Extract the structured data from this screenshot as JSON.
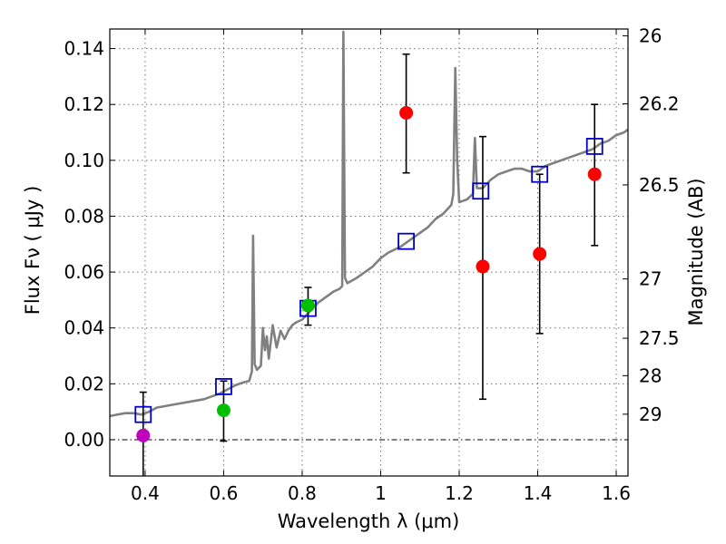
{
  "chart_data": {
    "type": "scatter",
    "xlabel": "Wavelength  λ (μm)",
    "ylabel": "Flux  Fν  ( μJy )",
    "y2label": "Magnitude (AB)",
    "xlim": [
      0.31,
      1.63
    ],
    "ylim": [
      -0.013,
      0.147
    ],
    "xticks": [
      {
        "value": 0.4,
        "label": "0.4"
      },
      {
        "value": 0.6,
        "label": "0.6"
      },
      {
        "value": 0.8,
        "label": "0.8"
      },
      {
        "value": 1.0,
        "label": "1"
      },
      {
        "value": 1.2,
        "label": "1.2"
      },
      {
        "value": 1.4,
        "label": "1.4"
      },
      {
        "value": 1.6,
        "label": "1.6"
      }
    ],
    "yticks": [
      {
        "value": 0.0,
        "label": "0.00"
      },
      {
        "value": 0.02,
        "label": "0.02"
      },
      {
        "value": 0.04,
        "label": "0.04"
      },
      {
        "value": 0.06,
        "label": "0.06"
      },
      {
        "value": 0.08,
        "label": "0.08"
      },
      {
        "value": 0.1,
        "label": "0.10"
      },
      {
        "value": 0.12,
        "label": "0.12"
      },
      {
        "value": 0.14,
        "label": "0.14"
      }
    ],
    "magnitude_ticks": [
      {
        "mag": 26,
        "label": "26"
      },
      {
        "mag": 26.2,
        "label": "26.2"
      },
      {
        "mag": 26.5,
        "label": "26.5"
      },
      {
        "mag": 27,
        "label": "27"
      },
      {
        "mag": 27.5,
        "label": "27.5"
      },
      {
        "mag": 28,
        "label": "28"
      },
      {
        "mag": 29,
        "label": "29"
      }
    ],
    "grid": true,
    "model_spectrum": {
      "color": "#808080",
      "points": [
        [
          0.31,
          0.0085
        ],
        [
          0.33,
          0.009
        ],
        [
          0.35,
          0.0095
        ],
        [
          0.37,
          0.0095
        ],
        [
          0.39,
          0.009
        ],
        [
          0.41,
          0.01
        ],
        [
          0.43,
          0.0115
        ],
        [
          0.45,
          0.012
        ],
        [
          0.47,
          0.0125
        ],
        [
          0.49,
          0.013
        ],
        [
          0.51,
          0.0135
        ],
        [
          0.53,
          0.014
        ],
        [
          0.55,
          0.0145
        ],
        [
          0.57,
          0.0155
        ],
        [
          0.59,
          0.0165
        ],
        [
          0.61,
          0.018
        ],
        [
          0.63,
          0.0195
        ],
        [
          0.65,
          0.0205
        ],
        [
          0.665,
          0.021
        ],
        [
          0.672,
          0.0245
        ],
        [
          0.675,
          0.073
        ],
        [
          0.679,
          0.027
        ],
        [
          0.685,
          0.025
        ],
        [
          0.695,
          0.0265
        ],
        [
          0.7,
          0.04
        ],
        [
          0.705,
          0.032
        ],
        [
          0.71,
          0.037
        ],
        [
          0.715,
          0.029
        ],
        [
          0.725,
          0.041
        ],
        [
          0.735,
          0.033
        ],
        [
          0.745,
          0.039
        ],
        [
          0.755,
          0.036
        ],
        [
          0.765,
          0.039
        ],
        [
          0.775,
          0.041
        ],
        [
          0.785,
          0.042
        ],
        [
          0.8,
          0.043
        ],
        [
          0.82,
          0.046
        ],
        [
          0.84,
          0.049
        ],
        [
          0.86,
          0.051
        ],
        [
          0.88,
          0.053
        ],
        [
          0.895,
          0.054
        ],
        [
          0.902,
          0.055
        ],
        [
          0.905,
          0.146
        ],
        [
          0.909,
          0.058
        ],
        [
          0.915,
          0.056
        ],
        [
          0.94,
          0.058
        ],
        [
          0.96,
          0.06
        ],
        [
          0.98,
          0.062
        ],
        [
          1.0,
          0.065
        ],
        [
          1.02,
          0.067
        ],
        [
          1.05,
          0.069
        ],
        [
          1.08,
          0.072
        ],
        [
          1.1,
          0.074
        ],
        [
          1.12,
          0.076
        ],
        [
          1.14,
          0.079
        ],
        [
          1.16,
          0.081
        ],
        [
          1.18,
          0.084
        ],
        [
          1.185,
          0.088
        ],
        [
          1.19,
          0.133
        ],
        [
          1.195,
          0.1
        ],
        [
          1.2,
          0.085
        ],
        [
          1.22,
          0.086
        ],
        [
          1.235,
          0.088
        ],
        [
          1.24,
          0.108
        ],
        [
          1.245,
          0.09
        ],
        [
          1.26,
          0.09
        ],
        [
          1.28,
          0.093
        ],
        [
          1.3,
          0.095
        ],
        [
          1.32,
          0.096
        ],
        [
          1.34,
          0.097
        ],
        [
          1.36,
          0.097
        ],
        [
          1.38,
          0.096
        ],
        [
          1.4,
          0.096
        ],
        [
          1.42,
          0.098
        ],
        [
          1.44,
          0.099
        ],
        [
          1.46,
          0.1
        ],
        [
          1.48,
          0.101
        ],
        [
          1.5,
          0.102
        ],
        [
          1.52,
          0.103
        ],
        [
          1.54,
          0.104
        ],
        [
          1.56,
          0.106
        ],
        [
          1.58,
          0.107
        ],
        [
          1.6,
          0.109
        ],
        [
          1.62,
          0.11
        ],
        [
          1.63,
          0.111
        ]
      ]
    },
    "series": [
      {
        "name": "model-photometry",
        "marker": "open-square",
        "color": "#0000cc",
        "points": [
          {
            "x": 0.395,
            "y": 0.009
          },
          {
            "x": 0.6,
            "y": 0.019
          },
          {
            "x": 0.815,
            "y": 0.047
          },
          {
            "x": 1.065,
            "y": 0.071
          },
          {
            "x": 1.255,
            "y": 0.089
          },
          {
            "x": 1.405,
            "y": 0.095
          },
          {
            "x": 1.545,
            "y": 0.105
          }
        ]
      },
      {
        "name": "observed-magenta",
        "marker": "circle",
        "color": "#bf00bf",
        "points": [
          {
            "x": 0.395,
            "y": 0.0015,
            "err_low": -0.016,
            "err_high": 0.017
          }
        ]
      },
      {
        "name": "observed-green",
        "marker": "circle",
        "color": "#00bf00",
        "points": [
          {
            "x": 0.6,
            "y": 0.0105,
            "err_low": -0.0005,
            "err_high": 0.021
          },
          {
            "x": 0.815,
            "y": 0.048,
            "err_low": 0.041,
            "err_high": 0.0545
          }
        ]
      },
      {
        "name": "observed-red",
        "marker": "circle",
        "color": "#ff0000",
        "points": [
          {
            "x": 1.065,
            "y": 0.117,
            "err_low": 0.0955,
            "err_high": 0.138
          },
          {
            "x": 1.26,
            "y": 0.062,
            "err_low": 0.0145,
            "err_high": 0.1085
          },
          {
            "x": 1.405,
            "y": 0.0665,
            "err_low": 0.038,
            "err_high": 0.095
          },
          {
            "x": 1.545,
            "y": 0.095,
            "err_low": 0.0695,
            "err_high": 0.12
          }
        ]
      }
    ]
  }
}
